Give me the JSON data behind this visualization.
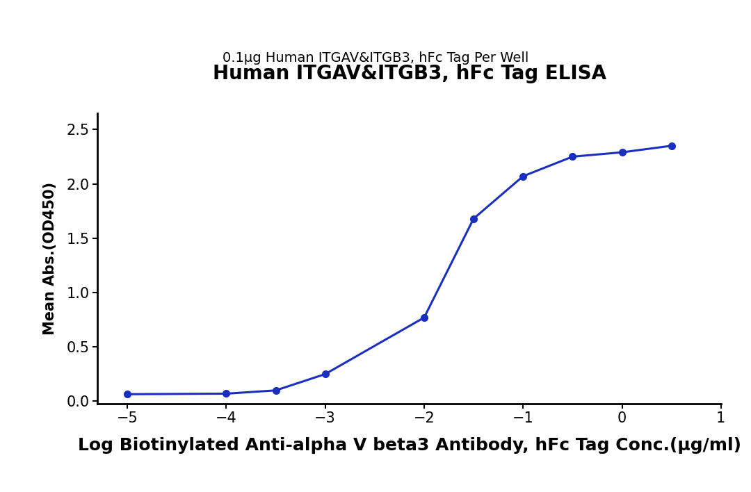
{
  "title": "Human ITGAV&ITGB3, hFc Tag ELISA",
  "subtitle": "0.1μg Human ITGAV&ITGB3, hFc Tag Per Well",
  "xlabel": "Log Biotinylated Anti-alpha V beta3 Antibody, hFc Tag Conc.(μg/ml)",
  "ylabel": "Mean Abs.(OD450)",
  "x_data": [
    -5,
    -4,
    -3.5,
    -3,
    -2,
    -1.5,
    -1,
    -0.5,
    0,
    0.5
  ],
  "y_data": [
    0.065,
    0.07,
    0.1,
    0.25,
    0.77,
    1.68,
    2.07,
    2.25,
    2.29,
    2.35
  ],
  "xlim": [
    -5.3,
    1.0
  ],
  "ylim": [
    -0.02,
    2.65
  ],
  "xticks": [
    -5,
    -4,
    -3,
    -2,
    -1,
    0,
    1
  ],
  "yticks": [
    0.0,
    0.5,
    1.0,
    1.5,
    2.0,
    2.5
  ],
  "line_color": "#1a2fc0",
  "marker_color": "#1a2fc0",
  "marker_size": 7,
  "line_width": 2.2,
  "title_fontsize": 20,
  "subtitle_fontsize": 14,
  "xlabel_fontsize": 18,
  "ylabel_fontsize": 15,
  "tick_fontsize": 15,
  "background_color": "#ffffff"
}
